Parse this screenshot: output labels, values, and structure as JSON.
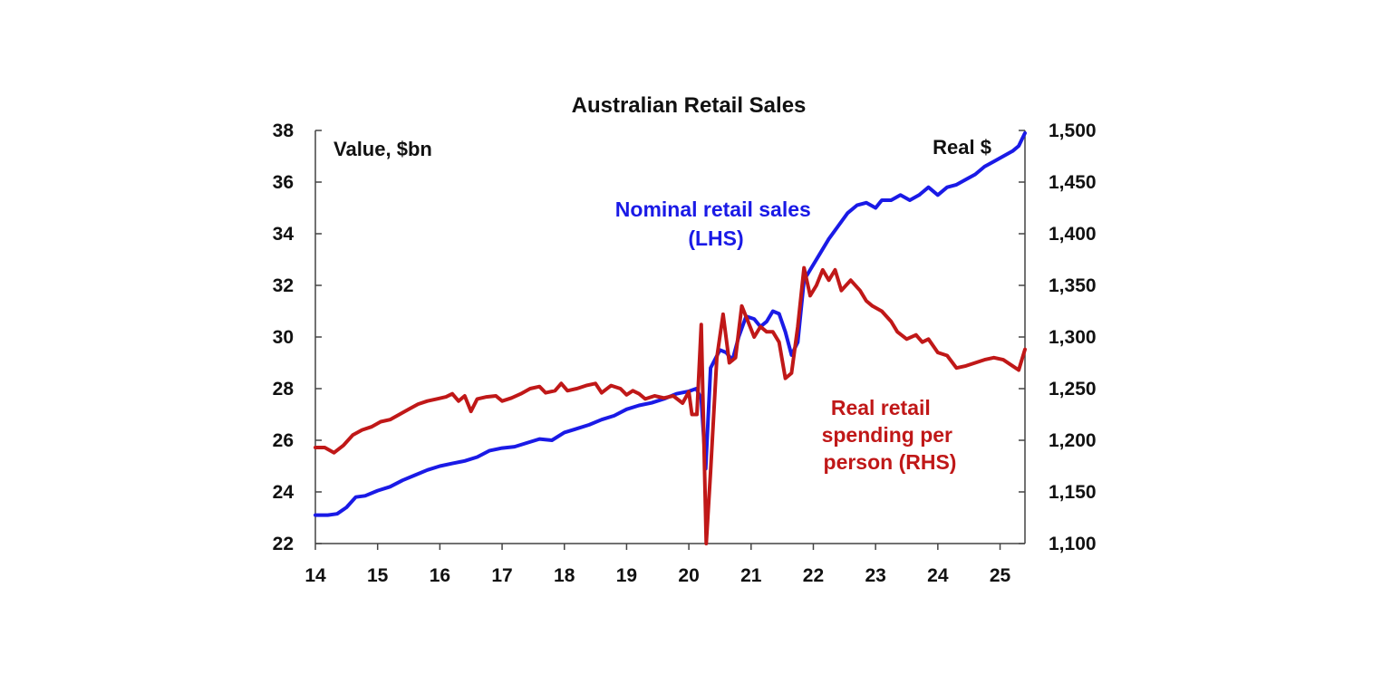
{
  "chart_data": {
    "type": "line",
    "title": "Australian Retail Sales",
    "x_ticks": [
      "14",
      "15",
      "16",
      "17",
      "18",
      "19",
      "20",
      "21",
      "22",
      "23",
      "24",
      "25"
    ],
    "xlim": [
      14,
      25.4
    ],
    "left_axis": {
      "unit_label": "Value, $bn",
      "ylim": [
        22,
        38
      ],
      "ticks": [
        "22",
        "24",
        "26",
        "28",
        "30",
        "32",
        "34",
        "36",
        "38"
      ]
    },
    "right_axis": {
      "unit_label": "Real $",
      "ylim": [
        1100,
        1500
      ],
      "ticks": [
        "1,100",
        "1,150",
        "1,200",
        "1,250",
        "1,300",
        "1,350",
        "1,400",
        "1,450",
        "1,500"
      ]
    },
    "grid": false,
    "series": [
      {
        "label_lines": [
          "Nominal retail sales",
          "(LHS)"
        ],
        "axis": "left",
        "color": "#1a1ae6",
        "points": [
          [
            14.0,
            23.1
          ],
          [
            14.2,
            23.1
          ],
          [
            14.35,
            23.15
          ],
          [
            14.5,
            23.4
          ],
          [
            14.65,
            23.8
          ],
          [
            14.8,
            23.85
          ],
          [
            15.0,
            24.05
          ],
          [
            15.2,
            24.2
          ],
          [
            15.4,
            24.45
          ],
          [
            15.6,
            24.65
          ],
          [
            15.8,
            24.85
          ],
          [
            16.0,
            25.0
          ],
          [
            16.2,
            25.1
          ],
          [
            16.4,
            25.2
          ],
          [
            16.6,
            25.35
          ],
          [
            16.8,
            25.6
          ],
          [
            17.0,
            25.7
          ],
          [
            17.2,
            25.75
          ],
          [
            17.4,
            25.9
          ],
          [
            17.6,
            26.05
          ],
          [
            17.8,
            26.0
          ],
          [
            18.0,
            26.3
          ],
          [
            18.2,
            26.45
          ],
          [
            18.4,
            26.6
          ],
          [
            18.6,
            26.8
          ],
          [
            18.8,
            26.95
          ],
          [
            19.0,
            27.2
          ],
          [
            19.2,
            27.35
          ],
          [
            19.4,
            27.45
          ],
          [
            19.6,
            27.6
          ],
          [
            19.8,
            27.8
          ],
          [
            20.0,
            27.9
          ],
          [
            20.12,
            28.0
          ],
          [
            20.2,
            27.6
          ],
          [
            20.27,
            24.9
          ],
          [
            20.35,
            28.8
          ],
          [
            20.5,
            29.5
          ],
          [
            20.6,
            29.4
          ],
          [
            20.7,
            29.1
          ],
          [
            20.8,
            30.0
          ],
          [
            20.92,
            30.8
          ],
          [
            21.05,
            30.7
          ],
          [
            21.15,
            30.4
          ],
          [
            21.25,
            30.6
          ],
          [
            21.35,
            31.0
          ],
          [
            21.45,
            30.9
          ],
          [
            21.55,
            30.2
          ],
          [
            21.65,
            29.3
          ],
          [
            21.75,
            29.8
          ],
          [
            21.85,
            32.2
          ],
          [
            21.95,
            32.6
          ],
          [
            22.1,
            33.2
          ],
          [
            22.25,
            33.8
          ],
          [
            22.4,
            34.3
          ],
          [
            22.55,
            34.8
          ],
          [
            22.7,
            35.1
          ],
          [
            22.85,
            35.2
          ],
          [
            23.0,
            35.0
          ],
          [
            23.1,
            35.3
          ],
          [
            23.25,
            35.3
          ],
          [
            23.4,
            35.5
          ],
          [
            23.55,
            35.3
          ],
          [
            23.7,
            35.5
          ],
          [
            23.85,
            35.8
          ],
          [
            24.0,
            35.5
          ],
          [
            24.15,
            35.8
          ],
          [
            24.3,
            35.9
          ],
          [
            24.45,
            36.1
          ],
          [
            24.6,
            36.3
          ],
          [
            24.75,
            36.6
          ],
          [
            24.9,
            36.8
          ],
          [
            25.05,
            37.0
          ],
          [
            25.2,
            37.2
          ],
          [
            25.3,
            37.4
          ],
          [
            25.4,
            37.9
          ]
        ]
      },
      {
        "label_lines": [
          "Real retail",
          "spending per",
          "person (RHS)"
        ],
        "axis": "right",
        "color": "#c01818",
        "points": [
          [
            14.0,
            1193
          ],
          [
            14.15,
            1193
          ],
          [
            14.3,
            1188
          ],
          [
            14.45,
            1195
          ],
          [
            14.6,
            1205
          ],
          [
            14.75,
            1210
          ],
          [
            14.9,
            1213
          ],
          [
            15.05,
            1218
          ],
          [
            15.2,
            1220
          ],
          [
            15.35,
            1225
          ],
          [
            15.5,
            1230
          ],
          [
            15.65,
            1235
          ],
          [
            15.8,
            1238
          ],
          [
            15.95,
            1240
          ],
          [
            16.1,
            1242
          ],
          [
            16.2,
            1245
          ],
          [
            16.3,
            1238
          ],
          [
            16.4,
            1243
          ],
          [
            16.5,
            1228
          ],
          [
            16.6,
            1240
          ],
          [
            16.75,
            1242
          ],
          [
            16.9,
            1243
          ],
          [
            17.0,
            1238
          ],
          [
            17.15,
            1241
          ],
          [
            17.3,
            1245
          ],
          [
            17.45,
            1250
          ],
          [
            17.6,
            1252
          ],
          [
            17.7,
            1246
          ],
          [
            17.85,
            1248
          ],
          [
            17.95,
            1255
          ],
          [
            18.05,
            1248
          ],
          [
            18.2,
            1250
          ],
          [
            18.35,
            1253
          ],
          [
            18.5,
            1255
          ],
          [
            18.6,
            1246
          ],
          [
            18.75,
            1253
          ],
          [
            18.9,
            1250
          ],
          [
            19.0,
            1244
          ],
          [
            19.1,
            1248
          ],
          [
            19.2,
            1245
          ],
          [
            19.3,
            1240
          ],
          [
            19.45,
            1243
          ],
          [
            19.6,
            1241
          ],
          [
            19.75,
            1243
          ],
          [
            19.9,
            1236
          ],
          [
            20.0,
            1247
          ],
          [
            20.05,
            1225
          ],
          [
            20.13,
            1225
          ],
          [
            20.2,
            1312
          ],
          [
            20.28,
            1100
          ],
          [
            20.35,
            1170
          ],
          [
            20.45,
            1280
          ],
          [
            20.55,
            1322
          ],
          [
            20.65,
            1275
          ],
          [
            20.75,
            1280
          ],
          [
            20.85,
            1330
          ],
          [
            20.95,
            1315
          ],
          [
            21.05,
            1300
          ],
          [
            21.15,
            1310
          ],
          [
            21.25,
            1305
          ],
          [
            21.35,
            1305
          ],
          [
            21.45,
            1295
          ],
          [
            21.55,
            1260
          ],
          [
            21.65,
            1265
          ],
          [
            21.75,
            1310
          ],
          [
            21.85,
            1367
          ],
          [
            21.95,
            1340
          ],
          [
            22.05,
            1350
          ],
          [
            22.15,
            1365
          ],
          [
            22.25,
            1355
          ],
          [
            22.35,
            1365
          ],
          [
            22.45,
            1345
          ],
          [
            22.6,
            1355
          ],
          [
            22.75,
            1345
          ],
          [
            22.85,
            1335
          ],
          [
            22.95,
            1330
          ],
          [
            23.1,
            1325
          ],
          [
            23.25,
            1315
          ],
          [
            23.35,
            1305
          ],
          [
            23.5,
            1298
          ],
          [
            23.65,
            1302
          ],
          [
            23.75,
            1295
          ],
          [
            23.85,
            1298
          ],
          [
            24.0,
            1285
          ],
          [
            24.15,
            1282
          ],
          [
            24.3,
            1270
          ],
          [
            24.45,
            1272
          ],
          [
            24.6,
            1275
          ],
          [
            24.75,
            1278
          ],
          [
            24.9,
            1280
          ],
          [
            25.05,
            1278
          ],
          [
            25.2,
            1272
          ],
          [
            25.3,
            1268
          ],
          [
            25.4,
            1288
          ]
        ]
      }
    ]
  }
}
